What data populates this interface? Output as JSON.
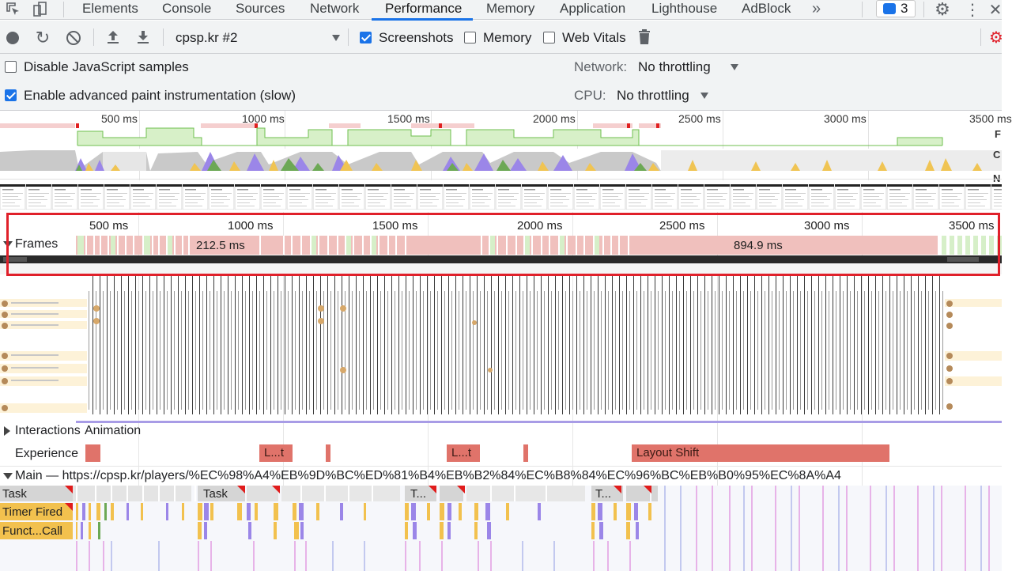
{
  "tabs": [
    {
      "label": "Elements",
      "active": false
    },
    {
      "label": "Console",
      "active": false
    },
    {
      "label": "Sources",
      "active": false
    },
    {
      "label": "Network",
      "active": false
    },
    {
      "label": "Performance",
      "active": true
    },
    {
      "label": "Memory",
      "active": false
    },
    {
      "label": "Application",
      "active": false
    },
    {
      "label": "Lighthouse",
      "active": false
    },
    {
      "label": "AdBlock",
      "active": false
    }
  ],
  "more_tabs": "»",
  "issues_count": "3",
  "toolbar": {
    "profile_select": "cpsp.kr #2",
    "screenshots_label": "Screenshots",
    "screenshots_checked": true,
    "memory_label": "Memory",
    "memory_checked": false,
    "web_vitals_label": "Web Vitals",
    "web_vitals_checked": false
  },
  "settings": {
    "disable_js_label": "Disable JavaScript samples",
    "disable_js_checked": false,
    "advanced_paint_label": "Enable advanced paint instrumentation (slow)",
    "advanced_paint_checked": true,
    "network_label": "Network:",
    "network_value": "No throttling",
    "cpu_label": "CPU:",
    "cpu_value": "No throttling"
  },
  "overview": {
    "ticks": [
      "500 ms",
      "1000 ms",
      "1500 ms",
      "2000 ms",
      "2500 ms",
      "3000 ms",
      "3500 ms"
    ],
    "fps_label": "F",
    "cpu_label": "C",
    "net_label": "N"
  },
  "timeline": {
    "ruler": [
      "500 ms",
      "1000 ms",
      "1500 ms",
      "2000 ms",
      "2500 ms",
      "3000 ms",
      "3500 ms"
    ],
    "frames_title": "Frames",
    "frame_label_1": "212.5 ms",
    "frame_label_2": "894.9 ms",
    "interactions_title": "Interactions",
    "animation_title": "Animation",
    "experience_title": "Experience",
    "experience_blocks": [
      "L...t",
      "L...t",
      "Layout Shift"
    ],
    "main_title": "Main — https://cpsp.kr/players/%EC%98%A4%EB%9D%BC%ED%81%B4%EB%B2%84%EC%B8%84%EC%96%BC%EB%B0%95%EC%8A%A4",
    "task_labels": [
      "Task",
      "Task",
      "T...",
      "T..."
    ],
    "timer_fired": "Timer Fired",
    "function_call": "Funct...Call"
  }
}
